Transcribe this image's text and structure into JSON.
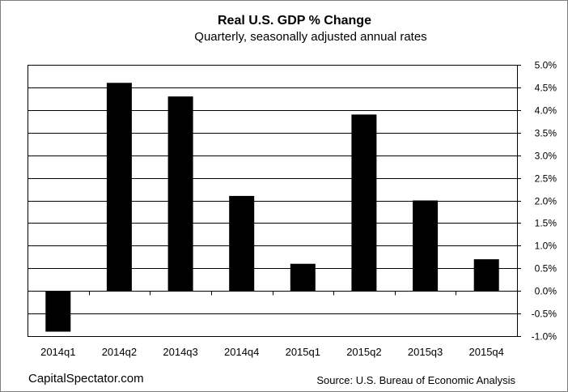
{
  "title": "Real U.S. GDP % Change",
  "subtitle": "Quarterly,  seasonally  adjusted  annual  rates",
  "credit": "CapitalSpectator.com",
  "source": "Source:  U.S. Bureau  of  Economic  Analysis",
  "colors": {
    "bar": "#000000",
    "grid": "#000000",
    "axis": "#000000"
  },
  "chart_data": {
    "type": "bar",
    "title": "Real U.S. GDP % Change",
    "subtitle": "Quarterly,  seasonally  adjusted  annual  rates",
    "categories": [
      "2014q1",
      "2014q2",
      "2014q3",
      "2014q4",
      "2015q1",
      "2015q2",
      "2015q3",
      "2015q4"
    ],
    "values": [
      -0.9,
      4.6,
      4.3,
      2.1,
      0.6,
      3.9,
      2.0,
      0.7
    ],
    "ylim": [
      -1.0,
      5.0
    ],
    "ytick_step": 0.5,
    "ytick_labels": [
      "-1.0%",
      "-0.5%",
      "0.0%",
      "0.5%",
      "1.0%",
      "1.5%",
      "2.0%",
      "2.5%",
      "3.0%",
      "3.5%",
      "4.0%",
      "4.5%",
      "5.0%"
    ],
    "y_axis_side": "right",
    "grid": true
  }
}
